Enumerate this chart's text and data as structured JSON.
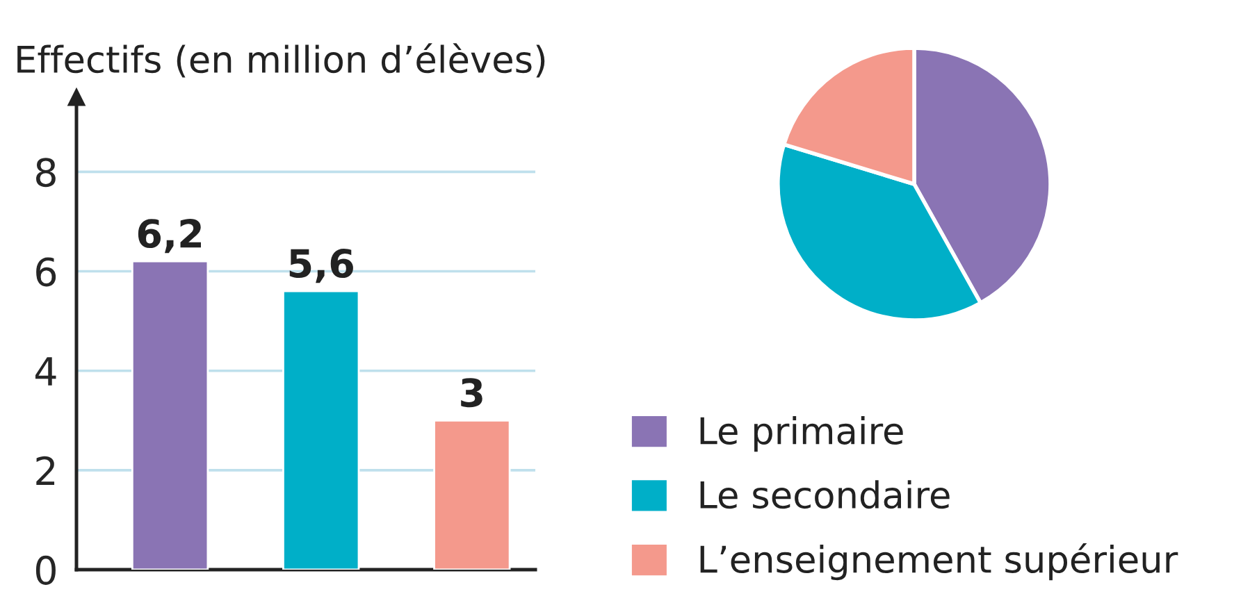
{
  "chart_data": [
    {
      "type": "bar",
      "ylabel": "Effectifs (en million d’élèves)",
      "categories": [
        null,
        null,
        null
      ],
      "values": [
        6.2,
        5.6,
        3
      ],
      "colors": [
        "#8a74b4",
        "#00afc8",
        "#f4998c"
      ],
      "ylim": [
        0,
        9.5
      ],
      "yticks": [
        0,
        2,
        4,
        6,
        8
      ],
      "grid": "y",
      "value_labels": [
        "6,2",
        "5,6",
        "3"
      ],
      "tick_labels": "y"
    },
    {
      "type": "pie",
      "categories": [
        "Le primaire",
        "Le secondaire",
        "L’enseignement supérieur"
      ],
      "values": [
        41.9,
        37.8,
        20.3
      ],
      "colors": [
        "#8a74b4",
        "#00afc8",
        "#f4998c"
      ],
      "legend": "bottom"
    }
  ]
}
